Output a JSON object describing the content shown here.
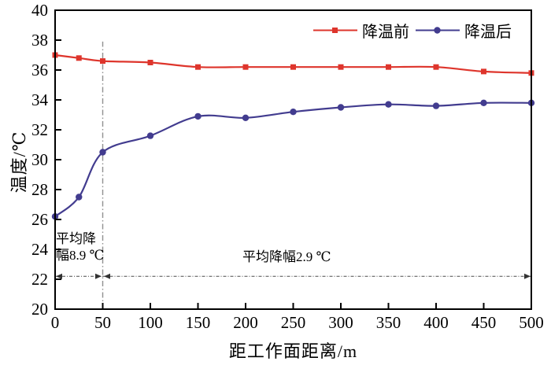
{
  "chart_data": {
    "type": "line",
    "x": [
      0,
      25,
      50,
      100,
      150,
      200,
      250,
      300,
      350,
      400,
      450,
      500
    ],
    "series": [
      {
        "name": "降温前",
        "color": "#de352c",
        "marker": "square",
        "values": [
          37.0,
          36.8,
          36.6,
          36.5,
          36.2,
          36.2,
          36.2,
          36.2,
          36.2,
          36.2,
          35.9,
          35.8
        ]
      },
      {
        "name": "降温后",
        "color": "#423c8f",
        "marker": "circle",
        "values": [
          26.2,
          27.5,
          30.5,
          31.6,
          32.9,
          32.8,
          33.2,
          33.5,
          33.7,
          33.6,
          33.8,
          33.8
        ]
      }
    ],
    "xlabel": "距工作面距离/m",
    "ylabel": "温度/℃",
    "xlim": [
      0,
      500
    ],
    "ylim": [
      20,
      40
    ],
    "x_ticks": [
      0,
      50,
      100,
      150,
      200,
      250,
      300,
      350,
      400,
      450,
      500
    ],
    "y_ticks": [
      20,
      22,
      24,
      26,
      28,
      30,
      32,
      34,
      36,
      38,
      40
    ],
    "grid": false,
    "legend_position": "top-right-inside",
    "annotations": [
      {
        "text": "平均降幅8.9 ℃",
        "lines": [
          "平均降",
          "幅8.9 ℃"
        ],
        "x_range": [
          0,
          50
        ],
        "y": 22.2
      },
      {
        "text": "平均降幅2.9 ℃",
        "lines": [
          "平均降幅2.9 ℃"
        ],
        "x_range": [
          50,
          500
        ],
        "y": 22.2
      }
    ],
    "reference_lines": {
      "vertical": {
        "x": 50,
        "y_top": 37.9,
        "style": "dash-dot",
        "color": "#909090"
      },
      "horizontal_arrow": {
        "y": 22.2,
        "segments": [
          [
            0,
            50
          ],
          [
            50,
            500
          ]
        ],
        "style": "dash-dot",
        "color": "#4a4a4a"
      }
    }
  }
}
